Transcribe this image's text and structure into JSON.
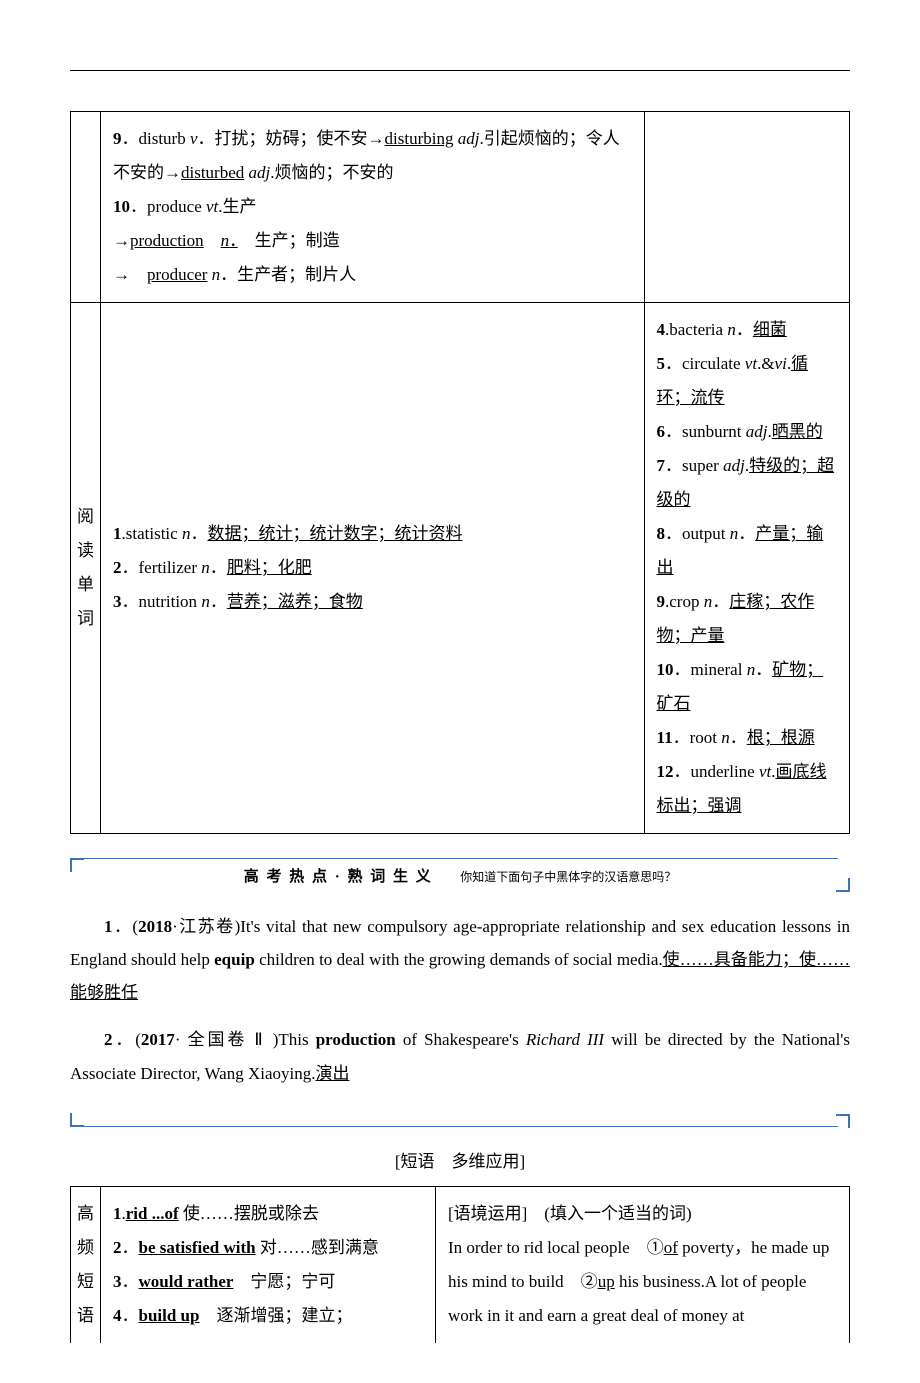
{
  "colors": {
    "accent": "#3a73b8",
    "text": "#000000",
    "bg": "#ffffff"
  },
  "typography": {
    "body_fontsize_pt": 12,
    "line_height": 2.0,
    "font_family": "Times New Roman / SimSun"
  },
  "table1": {
    "row1": {
      "left_html": "<span class='bold'>9</span>．disturb <span class='italic'>v</span>．打扰；妨碍；使不安→<span class='underline'>disturbing</span> <span class='italic'>adj</span>.引起烦恼的；令人不安的→<span class='underline'>disturbed</span> <span class='italic'>adj</span>.烦恼的；不安的<br><span class='bold'>10</span>．produce <span class='italic'>vt</span>.生产<br>→<span class='underline'>production</span>　<span class='italic underline'>n</span><span class='underline'>．</span>　生产；制造<br>→　<span class='underline'>producer</span> <span class='italic'>n</span>．生产者；制片人",
      "right_html": ""
    },
    "row2": {
      "label_chars": [
        "阅",
        "读",
        "单",
        "词"
      ],
      "left_html": "<span class='bold'>1</span>.statistic <span class='italic'>n</span>．<span class='underline'>数据；统计；统计数字；统计资料</span><br><span class='bold'>2</span>．fertilizer <span class='italic'>n</span>．<span class='underline'>肥料；化肥</span><br><span class='bold'>3</span>．nutrition <span class='italic'>n</span>．<span class='underline'>营养；滋养；食物</span>",
      "right_html": "<span class='bold'>4</span>.bacteria <span class='italic'>n</span>．<span class='underline'>细菌</span><br><span class='bold'>5</span>．circulate <span class='italic'>vt</span>.&<span class='italic'>vi</span>.<span class='underline'>循环；流传</span><br><span class='bold'>6</span>．sunburnt <span class='italic'>adj</span>.<span class='underline'>晒黑的</span><br><span class='bold'>7</span>．super <span class='italic'>adj</span>.<span class='underline'>特级的；超级的</span><br><span class='bold'>8</span>．output <span class='italic'>n</span>．<span class='underline'>产量；输出</span><br><span class='bold'>9</span>.crop <span class='italic'>n</span>．<span class='underline'>庄稼；农作物；产量</span><br><span class='bold'>10</span>．mineral <span class='italic'>n</span>．<span class='underline'>矿物；矿石</span><br><span class='bold'>11</span>．root <span class='italic'>n</span>．<span class='underline'>根；根源</span><br><span class='bold'>12</span>．underline <span class='italic'>vt</span>.<span class='underline'>画底线标出；强调</span>"
    }
  },
  "banner1": {
    "title_main": "高 考 热 点 · 熟 词 生 义",
    "title_sub": "你知道下面句子中黑体字的汉语意思吗？"
  },
  "para1_html": "<span class='bold'>1</span>．(<b>2018</b>·江苏卷)It's vital that new compulsory age-appropriate relationship and sex education lessons in England should help <b>equip</b> children to deal with the growing demands of social media.<span class='underline'>使……具备能力；使……能够胜任</span>",
  "para2_html": "<span class='bold'>2</span>．(<b>2017</b>· 全国卷 Ⅱ )This <b>production</b> of Shakespeare's <span class='italic'>Richard III</span> will be directed by the National's Associate Director, Wang Xiaoying.<span class='underline'>演出</span>",
  "center_heading": "[短语　多维应用]",
  "table2": {
    "label_chars": [
      "高",
      "频",
      "短",
      "语"
    ],
    "left_html": "<span class='bold'>1</span>.<span class='underline bold'>rid ...of</span> 使……摆脱或除去<br><span class='bold'>2</span>．<span class='underline bold'>be satisfied with</span> 对……感到满意<br><span class='bold'>3</span>．<span class='underline bold'>would rather</span>　宁愿；宁可<br><span class='bold'>4</span>．<span class='underline bold'>build up</span>　逐渐增强；建立；",
    "right_html": "[语境运用]　(填入一个适当的词)<br>In order to rid local people　①<span class='underline'>of</span> poverty，he made up his mind to build　②<span class='underline'>up</span> his business.A lot of people work in it and earn a great deal of money at"
  }
}
